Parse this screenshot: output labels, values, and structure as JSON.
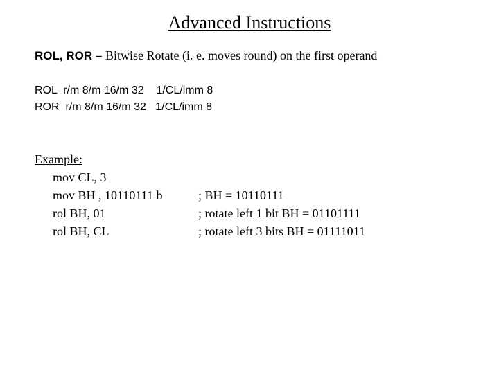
{
  "title": "Advanced Instructions",
  "desc": {
    "mnemonics": "ROL, ROR – ",
    "text": "Bitwise Rotate (i. e. moves round) on the first operand"
  },
  "syntax": {
    "rol": "ROL  r/m 8/m 16/m 32    1/CL/imm 8",
    "ror": "ROR  r/m 8/m 16/m 32   1/CL/imm 8"
  },
  "example": {
    "heading": "Example:",
    "lines": [
      {
        "code": "mov  CL, 3",
        "comment": ""
      },
      {
        "code": "mov BH , 10110111 b",
        "comment": "; BH = 10110111"
      },
      {
        "code": "rol BH, 01",
        "comment": ";  rotate left 1 bit BH = 01101111"
      },
      {
        "code": "rol BH, CL",
        "comment": "; rotate left 3 bits BH = 01111011"
      }
    ]
  },
  "colors": {
    "background": "#ffffff",
    "text": "#000000"
  },
  "fonts": {
    "body": "Times New Roman",
    "mono_like": "Arial"
  }
}
